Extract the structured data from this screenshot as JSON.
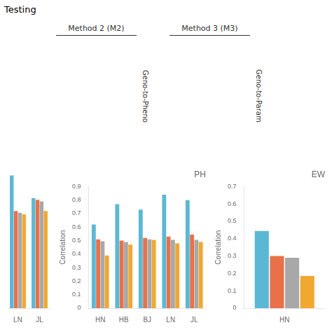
{
  "title": "Testing",
  "annotations": [
    "Method 2 (M2)",
    "Geno-to-Pheno",
    "Method 3 (M3)",
    "Geno-to-Param"
  ],
  "chart_data": [
    {
      "type": "bar",
      "categories": [
        "LN",
        "JL"
      ],
      "series": [
        {
          "color": "#5BB8D4",
          "values": [
            0.82,
            0.68
          ]
        },
        {
          "color": "#E8714A",
          "values": [
            0.6,
            0.67
          ]
        },
        {
          "color": "#A8A8A8",
          "values": [
            0.59,
            0.66
          ]
        },
        {
          "color": "#F0A830",
          "values": [
            0.58,
            0.6
          ]
        }
      ],
      "ylim": [
        0,
        0.9
      ],
      "yticks": [
        0,
        0.1,
        0.2,
        0.3,
        0.4,
        0.5,
        0.6,
        0.7,
        0.8,
        0.9
      ],
      "grid": false,
      "tick_labels": "x"
    },
    {
      "type": "bar",
      "title": "PH",
      "ylabel": "Correlation",
      "categories": [
        "HN",
        "HB",
        "BJ",
        "LN",
        "JL"
      ],
      "series": [
        {
          "color": "#5BB8D4",
          "values": [
            0.62,
            0.77,
            0.73,
            0.84,
            0.8
          ]
        },
        {
          "color": "#E8714A",
          "values": [
            0.51,
            0.5,
            0.52,
            0.53,
            0.545
          ]
        },
        {
          "color": "#A8A8A8",
          "values": [
            0.495,
            0.49,
            0.51,
            0.505,
            0.505
          ]
        },
        {
          "color": "#F0A830",
          "values": [
            0.39,
            0.47,
            0.505,
            0.48,
            0.49
          ]
        }
      ],
      "ylim": [
        0,
        0.9
      ],
      "yticks": [
        0,
        0.1,
        0.2,
        0.3,
        0.4,
        0.5,
        0.6,
        0.7,
        0.8,
        0.9
      ],
      "grid": false
    },
    {
      "type": "bar",
      "title": "EW",
      "ylabel": "Correlation",
      "categories": [
        "HN"
      ],
      "series": [
        {
          "color": "#5BB8D4",
          "values": [
            0.445
          ]
        },
        {
          "color": "#E8714A",
          "values": [
            0.3
          ]
        },
        {
          "color": "#A8A8A8",
          "values": [
            0.29
          ]
        },
        {
          "color": "#F0A830",
          "values": [
            0.185
          ]
        }
      ],
      "ylim": [
        0,
        0.7
      ],
      "yticks": [
        0,
        0.1,
        0.2,
        0.3,
        0.4,
        0.5,
        0.6,
        0.7
      ],
      "grid": false
    }
  ]
}
